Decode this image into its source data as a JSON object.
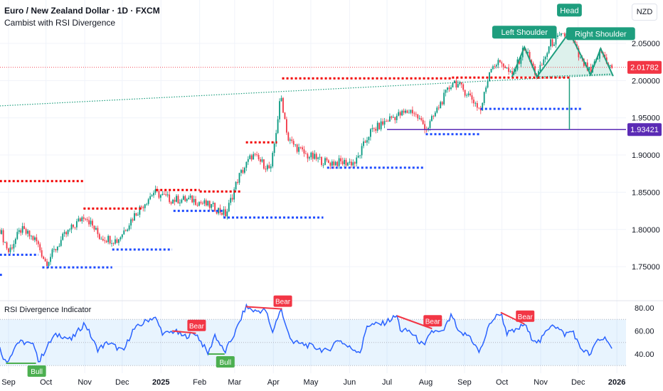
{
  "header": {
    "title": "Euro / New Zealand Dollar · 1D · FXCM",
    "subtitle": "Cambist with RSI Divergence",
    "currency_button": "NZD"
  },
  "colors": {
    "up": "#089981",
    "down": "#f23645",
    "rsi": "#2962ff",
    "resistance": "#f20000",
    "support": "#1e4bff",
    "pattern": "#1e9e7e",
    "target": "#5b2bb5",
    "bull": "#4caf50",
    "bear": "#f23645"
  },
  "chart_data": {
    "type": "candlestick",
    "symbol": "EURNZD",
    "time_unit": "days since 2024-09-01",
    "price_axis": {
      "ticks": [
        "2.05000",
        "2.00000",
        "1.95000",
        "1.90000",
        "1.85000",
        "1.80000",
        "1.75000"
      ],
      "values": [
        2.05,
        2.0,
        1.95,
        1.9,
        1.85,
        1.8,
        1.75
      ],
      "range": [
        1.71,
        2.085
      ]
    },
    "last_price": {
      "label": "2.01782",
      "value": 2.01782
    },
    "target_price": {
      "label": "1.93421",
      "value": 1.93421
    },
    "time_axis": [
      {
        "label": "Sep",
        "day": 0
      },
      {
        "label": "Oct",
        "day": 30
      },
      {
        "label": "Nov",
        "day": 61
      },
      {
        "label": "Dec",
        "day": 91
      },
      {
        "label": "2025",
        "day": 122,
        "bold": true
      },
      {
        "label": "Feb",
        "day": 153
      },
      {
        "label": "Mar",
        "day": 181
      },
      {
        "label": "Apr",
        "day": 212
      },
      {
        "label": "May",
        "day": 242
      },
      {
        "label": "Jun",
        "day": 273
      },
      {
        "label": "Jul",
        "day": 303
      },
      {
        "label": "Aug",
        "day": 334
      },
      {
        "label": "Sep",
        "day": 365
      },
      {
        "label": "Oct",
        "day": 395
      },
      {
        "label": "Nov",
        "day": 426
      },
      {
        "label": "Dec",
        "day": 456
      },
      {
        "label": "2026",
        "day": 487,
        "bold": true
      }
    ],
    "price_path": [
      [
        -7,
        1.8
      ],
      [
        0,
        1.77
      ],
      [
        10,
        1.8
      ],
      [
        22,
        1.785
      ],
      [
        30,
        1.755
      ],
      [
        44,
        1.79
      ],
      [
        61,
        1.82
      ],
      [
        73,
        1.79
      ],
      [
        87,
        1.785
      ],
      [
        101,
        1.82
      ],
      [
        116,
        1.85
      ],
      [
        130,
        1.84
      ],
      [
        147,
        1.84
      ],
      [
        164,
        1.83
      ],
      [
        174,
        1.82
      ],
      [
        184,
        1.87
      ],
      [
        195,
        1.9
      ],
      [
        210,
        1.88
      ],
      [
        218,
        1.98
      ],
      [
        224,
        1.92
      ],
      [
        238,
        1.9
      ],
      [
        255,
        1.89
      ],
      [
        278,
        1.89
      ],
      [
        289,
        1.93
      ],
      [
        306,
        1.95
      ],
      [
        323,
        1.96
      ],
      [
        335,
        1.935
      ],
      [
        346,
        1.97
      ],
      [
        356,
        2.0
      ],
      [
        369,
        1.98
      ],
      [
        378,
        1.96
      ],
      [
        386,
        2.02
      ],
      [
        395,
        2.025
      ],
      [
        403,
        2.005
      ],
      [
        413,
        2.045
      ],
      [
        423,
        2.005
      ],
      [
        434,
        2.05
      ],
      [
        449,
        2.065
      ],
      [
        457,
        2.03
      ],
      [
        466,
        2.01
      ],
      [
        474,
        2.04
      ],
      [
        483,
        2.015
      ]
    ],
    "resistance_levels": [
      {
        "from": -7,
        "to": 60,
        "price": 1.865
      },
      {
        "from": 60,
        "to": 107,
        "price": 1.828
      },
      {
        "from": 118,
        "to": 153,
        "price": 1.853
      },
      {
        "from": 153,
        "to": 187,
        "price": 1.851
      },
      {
        "from": 190,
        "to": 215,
        "price": 1.917
      },
      {
        "from": 219,
        "to": 355,
        "price": 2.003
      },
      {
        "from": 355,
        "to": 449,
        "price": 2.004
      },
      {
        "from": 449,
        "to": 460,
        "price": 2.07
      }
    ],
    "support_levels": [
      {
        "from": -7,
        "to": 24,
        "price": 1.766
      },
      {
        "from": 27,
        "to": 83,
        "price": 1.749
      },
      {
        "from": 83,
        "to": 131,
        "price": 1.773
      },
      {
        "from": 132,
        "to": 172,
        "price": 1.825
      },
      {
        "from": 172,
        "to": 252,
        "price": 1.816
      },
      {
        "from": 255,
        "to": 332,
        "price": 1.883
      },
      {
        "from": 334,
        "to": 378,
        "price": 1.928
      },
      {
        "from": 378,
        "to": 460,
        "price": 1.962
      },
      {
        "from": -7,
        "to": -4,
        "price": 1.739
      }
    ],
    "trendline": {
      "from": [
        -7,
        1.966
      ],
      "to": [
        483,
        2.008
      ]
    },
    "pattern": {
      "points": [
        [
          403,
          2.005
        ],
        [
          413,
          2.045
        ],
        [
          423,
          2.005
        ],
        [
          449,
          2.065
        ],
        [
          466,
          2.008
        ],
        [
          474,
          2.043
        ],
        [
          484,
          2.006
        ]
      ],
      "neckline": [
        [
          423,
          2.005
        ],
        [
          484,
          2.009
        ]
      ],
      "labels": [
        {
          "text": "Left Shoulder",
          "day": 413,
          "price": 2.045
        },
        {
          "text": "Head",
          "day": 449,
          "price": 2.065
        },
        {
          "text": "Right Shoulder",
          "day": 474,
          "price": 2.043
        }
      ],
      "projection": {
        "day": 449,
        "from": 2.003,
        "to": 1.93421
      }
    }
  },
  "rsi": {
    "title": "RSI Divergence Indicator",
    "ticks": [
      "80.00",
      "60.00",
      "40.00"
    ],
    "tick_values": [
      80,
      60,
      40
    ],
    "band": [
      30,
      70
    ],
    "mid": 50,
    "values": [
      [
        -7,
        45
      ],
      [
        -2,
        32
      ],
      [
        7,
        50
      ],
      [
        14,
        50
      ],
      [
        22,
        46
      ],
      [
        24,
        32
      ],
      [
        29,
        43
      ],
      [
        36,
        55
      ],
      [
        41,
        57
      ],
      [
        50,
        52
      ],
      [
        61,
        67
      ],
      [
        71,
        44
      ],
      [
        80,
        50
      ],
      [
        92,
        42
      ],
      [
        99,
        60
      ],
      [
        112,
        70
      ],
      [
        117,
        72
      ],
      [
        124,
        57
      ],
      [
        133,
        60
      ],
      [
        140,
        55
      ],
      [
        150,
        58
      ],
      [
        160,
        40
      ],
      [
        165,
        57
      ],
      [
        173,
        41
      ],
      [
        182,
        60
      ],
      [
        190,
        81
      ],
      [
        197,
        77
      ],
      [
        206,
        78
      ],
      [
        211,
        58
      ],
      [
        218,
        80
      ],
      [
        222,
        63
      ],
      [
        228,
        50
      ],
      [
        238,
        48
      ],
      [
        248,
        45
      ],
      [
        255,
        42
      ],
      [
        264,
        53
      ],
      [
        272,
        46
      ],
      [
        282,
        42
      ],
      [
        287,
        65
      ],
      [
        299,
        66
      ],
      [
        311,
        73
      ],
      [
        314,
        60
      ],
      [
        321,
        60
      ],
      [
        333,
        46
      ],
      [
        338,
        60
      ],
      [
        347,
        58
      ],
      [
        355,
        74
      ],
      [
        360,
        58
      ],
      [
        369,
        56
      ],
      [
        377,
        41
      ],
      [
        386,
        68
      ],
      [
        394,
        76
      ],
      [
        399,
        58
      ],
      [
        406,
        60
      ],
      [
        413,
        66
      ],
      [
        418,
        55
      ],
      [
        425,
        50
      ],
      [
        435,
        67
      ],
      [
        445,
        57
      ],
      [
        452,
        60
      ],
      [
        457,
        46
      ],
      [
        466,
        39
      ],
      [
        471,
        52
      ],
      [
        479,
        54
      ],
      [
        483,
        43
      ]
    ],
    "divergences": [
      {
        "type": "bull",
        "label": "Bull",
        "from": [
          -2,
          32
        ],
        "to": [
          22,
          32
        ]
      },
      {
        "type": "bear",
        "label": "Bear",
        "from": [
          131,
          60
        ],
        "to": [
          150,
          58
        ]
      },
      {
        "type": "bull",
        "label": "Bull",
        "from": [
          160,
          40
        ],
        "to": [
          173,
          40
        ]
      },
      {
        "type": "bear",
        "label": "Bear",
        "from": [
          190,
          81
        ],
        "to": [
          219,
          79
        ]
      },
      {
        "type": "bear",
        "label": "Bear",
        "from": [
          311,
          73
        ],
        "to": [
          339,
          62
        ]
      },
      {
        "type": "bear",
        "label": "Bear",
        "from": [
          394,
          76
        ],
        "to": [
          413,
          66
        ]
      }
    ]
  }
}
